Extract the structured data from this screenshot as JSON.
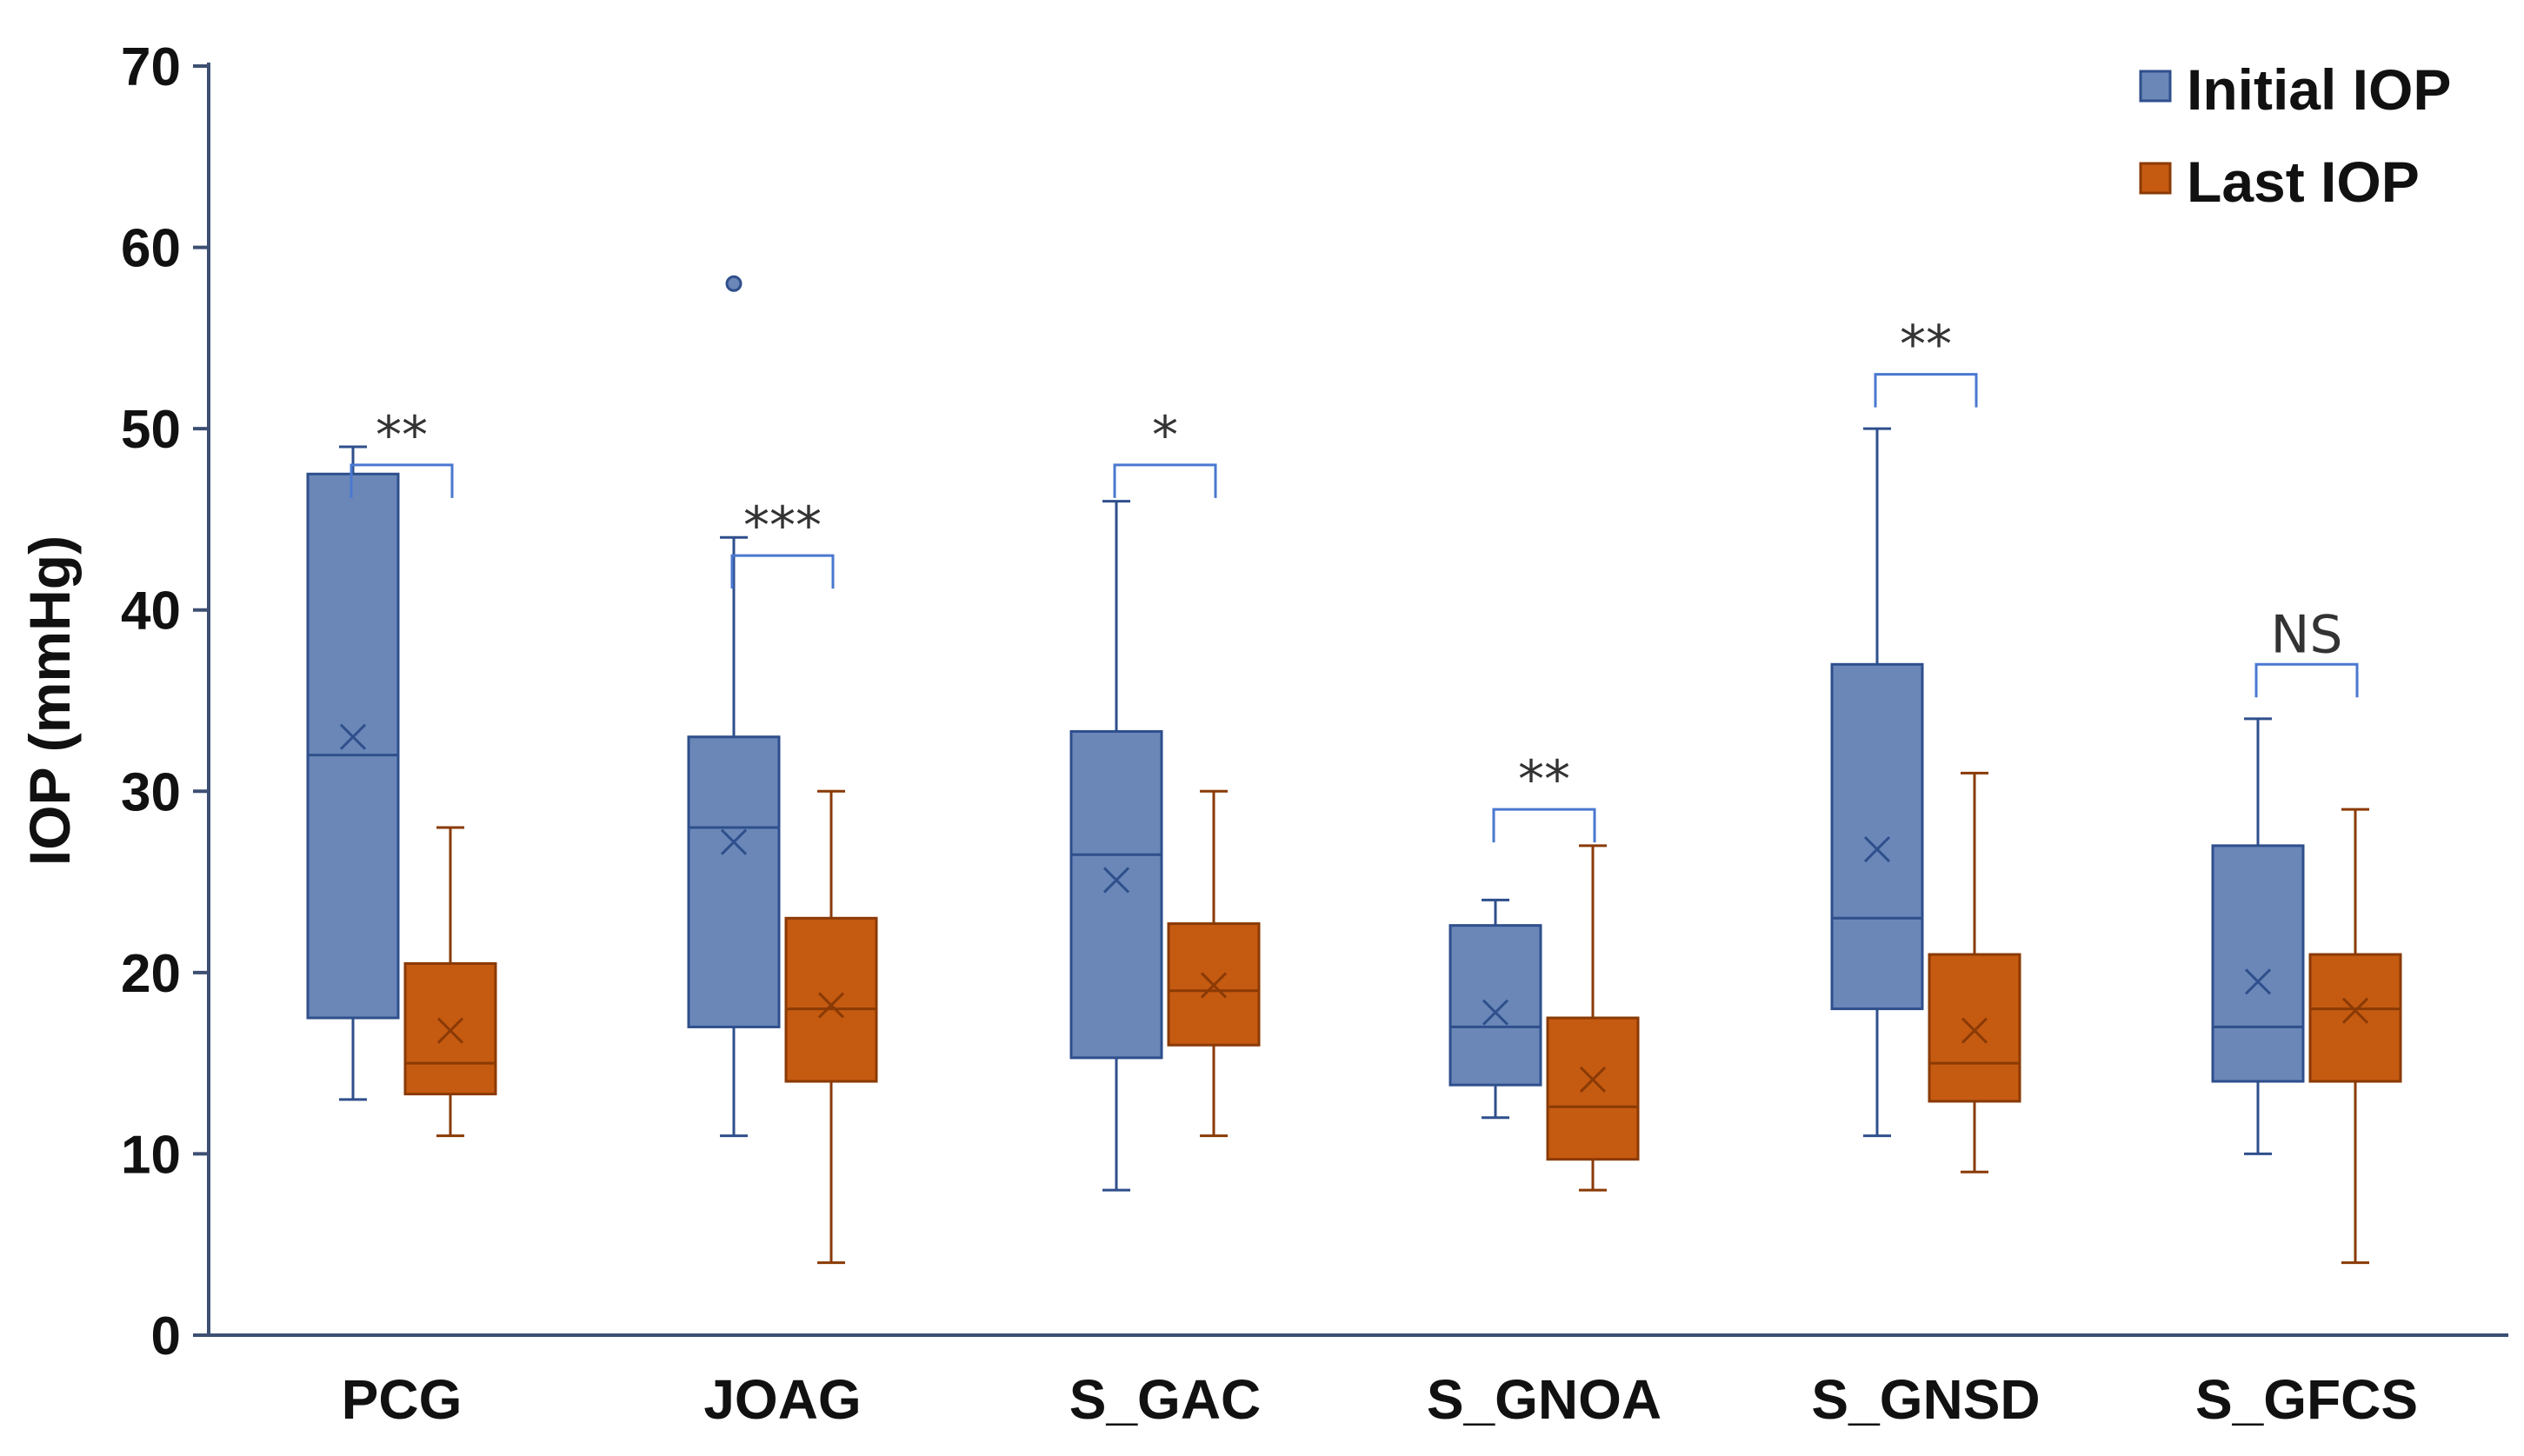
{
  "chart_data": {
    "type": "boxplot",
    "ylabel": "IOP (mmHg)",
    "ylim": [
      0,
      70
    ],
    "yticks": [
      0,
      10,
      20,
      30,
      40,
      50,
      60,
      70
    ],
    "grid": false,
    "legend_position": "top-right",
    "categories": [
      "PCG",
      "JOAG",
      "S_GAC",
      "S_GNOA",
      "S_GNSD",
      "S_GFCS"
    ],
    "series": [
      {
        "name": "Initial IOP",
        "color": "#6a87b8",
        "edge_color": "#2f4f8c",
        "boxes": [
          {
            "min": 13,
            "q1": 17.5,
            "median": 32,
            "q3": 47.5,
            "max": 49,
            "mean": 33,
            "outliers": []
          },
          {
            "min": 11,
            "q1": 17,
            "median": 28,
            "q3": 33,
            "max": 44,
            "mean": 27.2,
            "outliers": [
              58
            ]
          },
          {
            "min": 8,
            "q1": 15.3,
            "median": 26.5,
            "q3": 33.3,
            "max": 46,
            "mean": 25.1,
            "outliers": []
          },
          {
            "min": 12,
            "q1": 13.8,
            "median": 17,
            "q3": 22.6,
            "max": 24,
            "mean": 17.8,
            "outliers": []
          },
          {
            "min": 11,
            "q1": 18,
            "median": 23,
            "q3": 37,
            "max": 50,
            "mean": 26.8,
            "outliers": []
          },
          {
            "min": 10,
            "q1": 14,
            "median": 17,
            "q3": 27,
            "max": 34,
            "mean": 19.5,
            "outliers": []
          }
        ]
      },
      {
        "name": "Last IOP",
        "color": "#c55a11",
        "edge_color": "#8a3a05",
        "boxes": [
          {
            "min": 11,
            "q1": 13.3,
            "median": 15,
            "q3": 20.5,
            "max": 28,
            "mean": 16.8,
            "outliers": []
          },
          {
            "min": 4,
            "q1": 14,
            "median": 18,
            "q3": 23,
            "max": 30,
            "mean": 18.2,
            "outliers": []
          },
          {
            "min": 11,
            "q1": 16,
            "median": 19,
            "q3": 22.7,
            "max": 30,
            "mean": 19.3,
            "outliers": []
          },
          {
            "min": 8,
            "q1": 9.7,
            "median": 12.6,
            "q3": 17.5,
            "max": 27,
            "mean": 14.1,
            "outliers": []
          },
          {
            "min": 9,
            "q1": 12.9,
            "median": 15,
            "q3": 21,
            "max": 31,
            "mean": 16.8,
            "outliers": []
          },
          {
            "min": 4,
            "q1": 14,
            "median": 18,
            "q3": 21,
            "max": 29,
            "mean": 17.9,
            "outliers": []
          }
        ]
      }
    ],
    "significance": [
      {
        "category": "PCG",
        "label": "**",
        "level": 48
      },
      {
        "category": "JOAG",
        "label": "***",
        "level": 43
      },
      {
        "category": "S_GAC",
        "label": "*",
        "level": 48
      },
      {
        "category": "S_GNOA",
        "label": "**",
        "level": 29
      },
      {
        "category": "S_GNSD",
        "label": "**",
        "level": 53
      },
      {
        "category": "S_GFCS",
        "label": "NS",
        "level": 37
      }
    ]
  }
}
